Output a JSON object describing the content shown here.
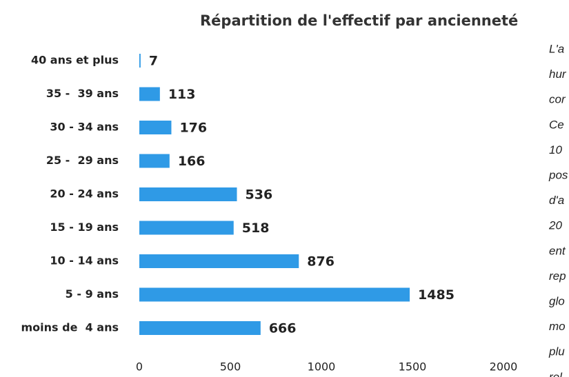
{
  "chart_data": {
    "type": "hbar",
    "title": "Répartition de l'effectif par ancienneté",
    "categories": [
      "40 ans et plus",
      "35 -  39 ans",
      "30 - 34 ans",
      "25 -  29 ans",
      "20 - 24 ans",
      "15 - 19 ans",
      "10 - 14 ans",
      "5 - 9 ans",
      "moins de  4 ans"
    ],
    "values": [
      7,
      113,
      176,
      166,
      536,
      518,
      876,
      1485,
      666
    ],
    "color": "#2f9ae6",
    "xlim": [
      0,
      2000
    ],
    "xticks": [
      0,
      500,
      1000,
      1500,
      2000
    ],
    "grid": false
  },
  "side_text": {
    "lines": [
      "L'a",
      "hur",
      "cor",
      "Ce",
      "10",
      "pos",
      "d'a",
      "20",
      "ent",
      "rep",
      "glo",
      "mo",
      "plu",
      "rel"
    ]
  }
}
